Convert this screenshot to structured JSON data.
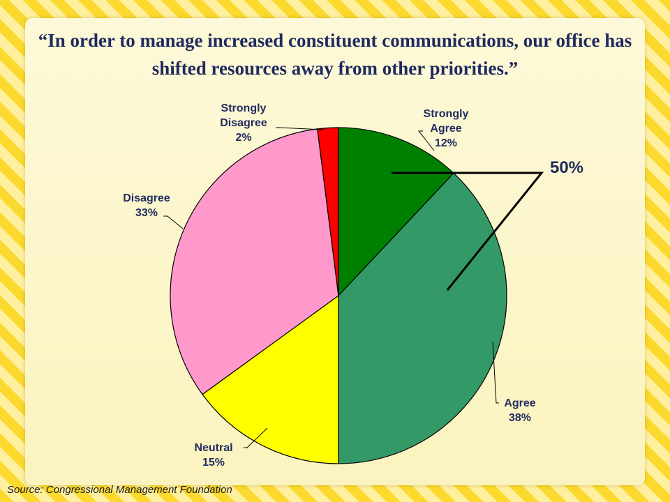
{
  "title": "“In order to manage increased constituent communications, our office has shifted resources away from other priorities.”",
  "source": "Source:  Congressional Management Foundation",
  "chart_data": {
    "type": "pie",
    "title": "“In order to manage increased constituent communications, our office has shifted resources away from other priorities.”",
    "slices": [
      {
        "label_lines": [
          "Strongly",
          "Agree"
        ],
        "value": 12,
        "value_label": "12%",
        "color": "#008000"
      },
      {
        "label_lines": [
          "Agree"
        ],
        "value": 38,
        "value_label": "38%",
        "color": "#339966"
      },
      {
        "label_lines": [
          "Neutral"
        ],
        "value": 15,
        "value_label": "15%",
        "color": "#ffff00"
      },
      {
        "label_lines": [
          "Disagree"
        ],
        "value": 33,
        "value_label": "33%",
        "color": "#ff99cc"
      },
      {
        "label_lines": [
          "Strongly",
          "Disagree"
        ],
        "value": 2,
        "value_label": "2%",
        "color": "#ff0000"
      }
    ],
    "annotation": {
      "text": "50%",
      "applies_to": [
        "Strongly Agree",
        "Agree"
      ]
    }
  }
}
